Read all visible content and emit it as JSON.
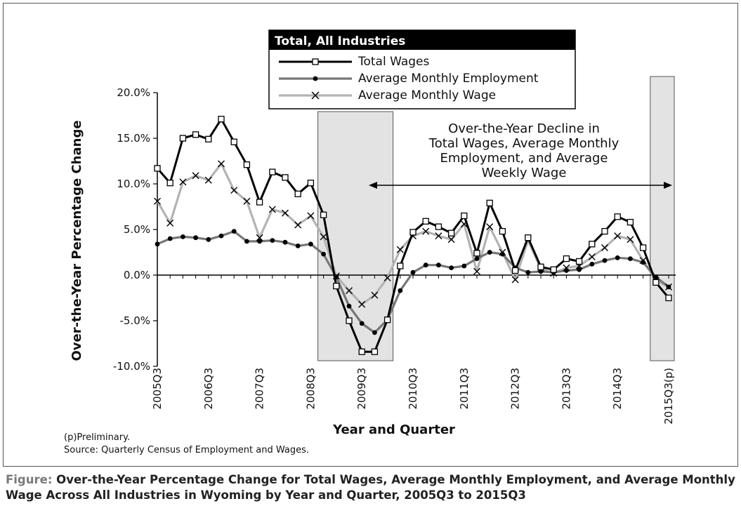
{
  "chart_data": {
    "type": "line",
    "title": "Total, All Industries",
    "xlabel": "Year and Quarter",
    "ylabel": "Over-the-Year Percentage Change",
    "ylim": [
      -10,
      20
    ],
    "y_ticks": [
      "-10.0%",
      "-5.0%",
      "0.0%",
      "5.0%",
      "10.0%",
      "15.0%",
      "20.0%"
    ],
    "x_tick_labels": [
      "2005Q3",
      "2006Q3",
      "2007Q3",
      "2008Q3",
      "2009Q3",
      "2010Q3",
      "2011Q3",
      "2012Q3",
      "2013Q3",
      "2014Q3",
      "2015Q3(p)"
    ],
    "quarters": [
      "2005Q3",
      "2005Q4",
      "2006Q1",
      "2006Q2",
      "2006Q3",
      "2006Q4",
      "2007Q1",
      "2007Q2",
      "2007Q3",
      "2007Q4",
      "2008Q1",
      "2008Q2",
      "2008Q3",
      "2008Q4",
      "2009Q1",
      "2009Q2",
      "2009Q3",
      "2009Q4",
      "2010Q1",
      "2010Q2",
      "2010Q3",
      "2010Q4",
      "2011Q1",
      "2011Q2",
      "2011Q3",
      "2011Q4",
      "2012Q1",
      "2012Q2",
      "2012Q3",
      "2012Q4",
      "2013Q1",
      "2013Q2",
      "2013Q3",
      "2013Q4",
      "2014Q1",
      "2014Q2",
      "2014Q3",
      "2014Q4",
      "2015Q1",
      "2015Q2",
      "2015Q3"
    ],
    "series": [
      {
        "name": "Total Wages",
        "color": "#000000",
        "marker": "square",
        "values": [
          11.7,
          10.1,
          15.0,
          15.4,
          14.9,
          17.1,
          14.6,
          12.1,
          8.0,
          11.3,
          10.7,
          8.9,
          10.1,
          6.6,
          -1.2,
          -5.0,
          -8.4,
          -8.4,
          -4.9,
          1.0,
          4.7,
          5.9,
          5.3,
          4.6,
          6.5,
          2.4,
          7.9,
          4.8,
          0.5,
          4.1,
          0.9,
          0.6,
          1.8,
          1.5,
          3.4,
          4.8,
          6.4,
          5.8,
          3.0,
          -0.8,
          -2.5
        ]
      },
      {
        "name": "Average Monthly Employment",
        "color": "#777777",
        "marker": "dot",
        "values": [
          3.4,
          4.0,
          4.2,
          4.1,
          3.9,
          4.3,
          4.8,
          3.7,
          3.7,
          3.8,
          3.6,
          3.2,
          3.4,
          2.3,
          -0.2,
          -3.4,
          -5.3,
          -6.3,
          -4.9,
          -1.7,
          0.3,
          1.1,
          1.1,
          0.8,
          1.0,
          1.8,
          2.5,
          2.3,
          0.8,
          0.3,
          0.4,
          0.3,
          0.5,
          0.6,
          1.2,
          1.6,
          1.9,
          1.8,
          1.4,
          -0.2,
          -1.3
        ]
      },
      {
        "name": "Average Monthly Wage",
        "color": "#b3b3b3",
        "marker": "x",
        "values": [
          8.1,
          5.7,
          10.2,
          10.9,
          10.4,
          12.2,
          9.3,
          8.1,
          4.1,
          7.2,
          6.8,
          5.5,
          6.5,
          4.2,
          -0.1,
          -1.7,
          -3.2,
          -2.2,
          -0.3,
          2.8,
          4.3,
          4.8,
          4.3,
          3.9,
          5.6,
          0.4,
          5.3,
          2.5,
          -0.5,
          3.8,
          0.7,
          0.2,
          0.8,
          1.0,
          2.0,
          3.0,
          4.3,
          3.9,
          1.6,
          -0.6,
          -1.3
        ]
      }
    ],
    "shaded_ranges": [
      {
        "from": "2008Q4",
        "to": "2010Q1"
      },
      {
        "from": "2015Q2",
        "to": "2015Q3"
      }
    ],
    "annotation": [
      "Over-the-Year Decline in",
      "Total Wages, Average Monthly",
      "Employment, and Average",
      "Weekly Wage"
    ],
    "notes": [
      "(p)Preliminary.",
      "Source: Quarterly Census of Employment and Wages."
    ]
  },
  "caption": {
    "lead": "Figure:",
    "text": "Over-the-Year Percentage Change for Total Wages, Average Monthly Employment, and Average Monthly Wage Across All Industries in Wyoming by Year and Quarter, 2005Q3 to 2015Q3"
  }
}
